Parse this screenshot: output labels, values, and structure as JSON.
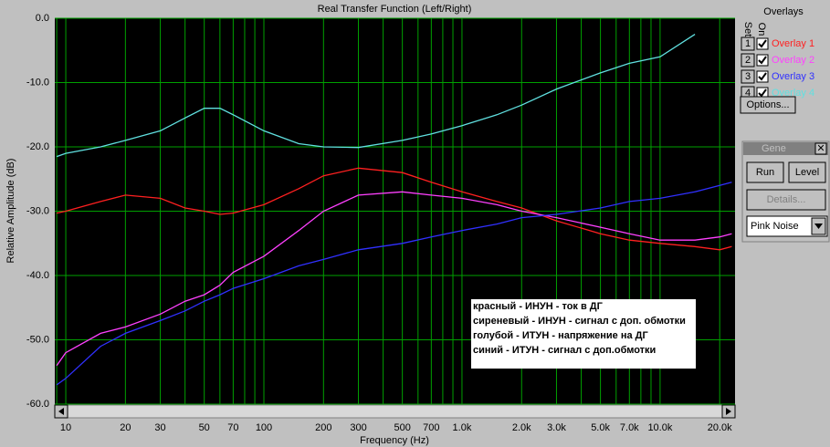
{
  "chart_data": {
    "type": "line",
    "title": "Real Transfer Function (Left/Right)",
    "x_label": "Frequency (Hz)",
    "y_label": "Relative Amplitude (dB)",
    "x_scale": "log",
    "grid": true,
    "grid_color": "#00a000",
    "background": "#000000",
    "xlim": [
      8.8,
      23900
    ],
    "ylim": [
      -60,
      0
    ],
    "xticks": [
      10,
      20,
      30,
      50,
      70,
      100,
      200,
      300,
      500,
      700,
      {
        "value": 1000,
        "label": "1.0k"
      },
      {
        "value": 2000,
        "label": "2.0k"
      },
      {
        "value": 3000,
        "label": "3.0k"
      },
      {
        "value": 5000,
        "label": "5.0k"
      },
      {
        "value": 7000,
        "label": "7.0k"
      },
      {
        "value": 10000,
        "label": "10.0k"
      },
      {
        "value": 20000,
        "label": "20.0k"
      }
    ],
    "x_minor_ticks": [
      9,
      40,
      60,
      80,
      90,
      400,
      600,
      800,
      900,
      4000,
      6000,
      8000,
      9000
    ],
    "yticks": [
      {
        "value": 0,
        "label": "0.0"
      },
      {
        "value": -10,
        "label": "-10.0"
      },
      {
        "value": -20,
        "label": "-20.0"
      },
      {
        "value": -30,
        "label": "-30.0"
      },
      {
        "value": -40,
        "label": "-40.0"
      },
      {
        "value": -50,
        "label": "-50.0"
      },
      {
        "value": -60,
        "label": "-60.0"
      }
    ],
    "x": [
      9,
      10,
      15,
      20,
      30,
      40,
      50,
      60,
      70,
      100,
      150,
      200,
      300,
      500,
      700,
      1000,
      1500,
      2000,
      3000,
      5000,
      7000,
      10000,
      15000,
      20000,
      23000
    ],
    "series": [
      {
        "name": "Overlay 1",
        "color": "#ff2020",
        "values": [
          -30.3,
          -30,
          -28.5,
          -27.5,
          -28,
          -29.5,
          -30,
          -30.5,
          -30.3,
          -29,
          -26.5,
          -24.5,
          -23.3,
          -24,
          -25.5,
          -27,
          -28.5,
          -29.5,
          -31.5,
          -33.5,
          -34.5,
          -35,
          -35.5,
          -36,
          -35.5
        ]
      },
      {
        "name": "Overlay 2",
        "color": "#ff40ff",
        "values": [
          -54,
          -52,
          -49,
          -48,
          -46,
          -44,
          -43,
          -41.5,
          -39.5,
          -37,
          -33,
          -30,
          -27.5,
          -27,
          -27.5,
          -28,
          -29,
          -30,
          -31,
          -32.5,
          -33.5,
          -34.5,
          -34.5,
          -34,
          -33.5
        ]
      },
      {
        "name": "Overlay 3",
        "color": "#3030ff",
        "values": [
          -57,
          -56,
          -51,
          -49,
          -47,
          -45.5,
          -44,
          -43,
          -42,
          -40.5,
          -38.5,
          -37.5,
          -36,
          -35,
          -34,
          -33,
          -32,
          -31,
          -30.5,
          -29.5,
          -28.5,
          -28,
          -27,
          -26,
          -25.5
        ]
      },
      {
        "name": "Overlay 4",
        "color": "#60e0e0",
        "values": [
          -21.5,
          -21,
          -20,
          -19,
          -17.5,
          -15.5,
          -14,
          -14,
          -15,
          -17.5,
          -19.5,
          -20,
          -20.1,
          -19,
          -18,
          -16.7,
          -15,
          -13.5,
          -11,
          -8.5,
          -7,
          -6,
          -2.5,
          null,
          null
        ]
      }
    ],
    "annotations": [
      "красный - ИНУН - ток в ДГ",
      "сиреневый - ИНУН - сигнал с доп. обмотки",
      "голубой - ИТУН - напряжение на ДГ",
      "синий - ИТУН - сигнал с доп.обмотки"
    ]
  },
  "overlay_panel": {
    "title": "Overlays",
    "set_header": "Set",
    "on_header": "On",
    "rows": [
      "1",
      "2",
      "3",
      "4"
    ],
    "options_button": "Options..."
  },
  "generator_panel": {
    "title": "Gene",
    "run": "Run",
    "level": "Level",
    "details": "Details...",
    "signal": "Pink Noise"
  }
}
